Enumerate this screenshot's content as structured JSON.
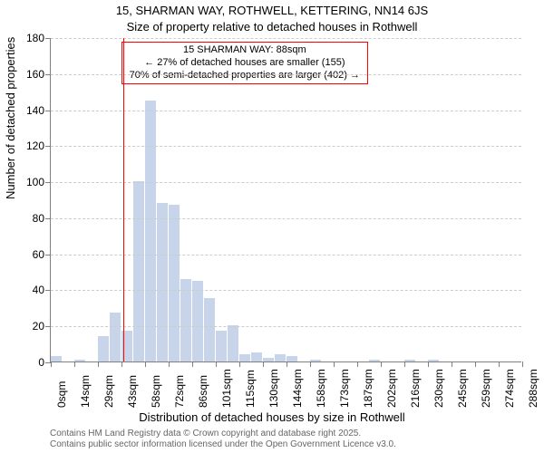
{
  "title": "15, SHARMAN WAY, ROTHWELL, KETTERING, NN14 6JS",
  "subtitle": "Size of property relative to detached houses in Rothwell",
  "yaxis_label": "Number of detached properties",
  "xaxis_label": "Distribution of detached houses by size in Rothwell",
  "footnote_line1": "Contains HM Land Registry data © Crown copyright and database right 2025.",
  "footnote_line2": "Contains public sector information licensed under the Open Government Licence v3.0.",
  "chart": {
    "type": "histogram",
    "ylim": [
      0,
      180
    ],
    "ytick_step": 20,
    "xtick_labels": [
      "0sqm",
      "14sqm",
      "29sqm",
      "43sqm",
      "58sqm",
      "72sqm",
      "86sqm",
      "101sqm",
      "115sqm",
      "130sqm",
      "144sqm",
      "158sqm",
      "173sqm",
      "187sqm",
      "202sqm",
      "216sqm",
      "230sqm",
      "245sqm",
      "259sqm",
      "274sqm",
      "288sqm"
    ],
    "bar_values": [
      3,
      0,
      1,
      0,
      14,
      27,
      17,
      100,
      145,
      88,
      87,
      46,
      45,
      35,
      17,
      20,
      4,
      5,
      2,
      4,
      3,
      0,
      1,
      0,
      0,
      0,
      0,
      1,
      0,
      0,
      1,
      0,
      1,
      0,
      0,
      0,
      0,
      0,
      0,
      0
    ],
    "bar_color": "#c8d4ea",
    "bar_border_color": "#ffffff",
    "grid_color": "#cccccc",
    "axis_color": "#808080",
    "background_color": "#ffffff",
    "marker": {
      "bin_index": 6,
      "fraction_in_bin": 0.14,
      "color": "#ff0000"
    },
    "annotation": {
      "line1": "15 SHARMAN WAY: 88sqm",
      "line2": "← 27% of detached houses are smaller (155)",
      "line3": "70% of semi-detached properties are larger (402) →",
      "border_color": "#ff0000"
    },
    "title_fontsize": 13,
    "label_fontsize": 13,
    "tick_fontsize": 12
  }
}
